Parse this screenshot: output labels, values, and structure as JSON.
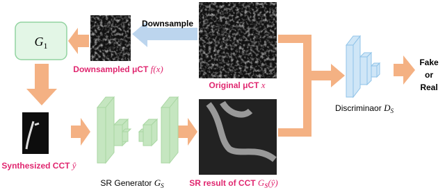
{
  "generator_box": {
    "symbol": "G",
    "subscript": "1"
  },
  "arrow_label": "Downsample",
  "images": [
    {
      "caption": "Downsampled μCT",
      "math": "f(x)"
    },
    {
      "caption": "Original μCT",
      "math": "x"
    },
    {
      "caption": "Synthesized CCT",
      "math": "ŷ"
    },
    {
      "caption": "SR result of CCT",
      "math": "G",
      "sub": "S",
      "tail": "(ŷ)"
    }
  ],
  "networks": [
    {
      "label": "SR Generator",
      "math": "G",
      "sub": "S"
    },
    {
      "label": "Discriminaor",
      "math": "D",
      "sub": "S"
    }
  ],
  "output": [
    "Fake",
    "or",
    "Real"
  ]
}
